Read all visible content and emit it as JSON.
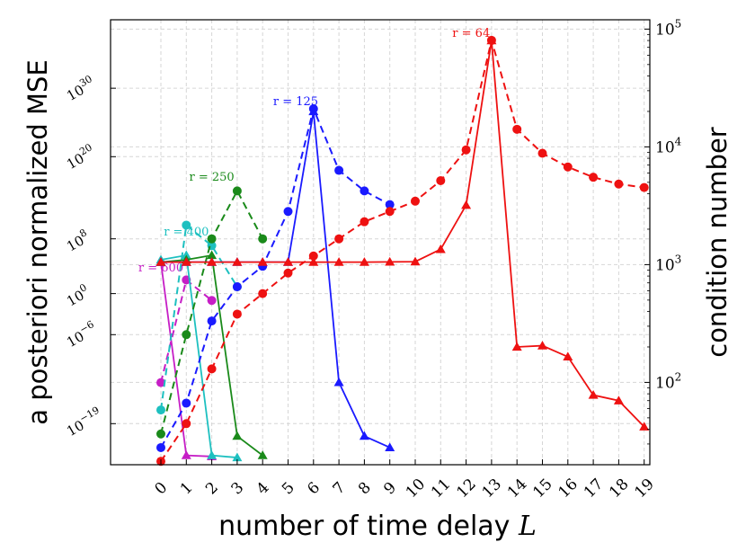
{
  "chart_data": {
    "type": "line",
    "xlabel": "number of time delay",
    "xlabel_var": "L",
    "ylabel_left": "a posteriori normalized MSE",
    "ylabel_right": "condition number",
    "x_ticks": [
      "0",
      "1",
      "2",
      "3",
      "4",
      "5",
      "6",
      "7",
      "8",
      "9",
      "10",
      "11",
      "12",
      "13",
      "14",
      "15",
      "16",
      "17",
      "18",
      "19"
    ],
    "left_axis": {
      "scale": "linear",
      "lim": [
        -25,
        40
      ],
      "ticks": [
        {
          "v": 30,
          "b": "10",
          "e": "30"
        },
        {
          "v": 20,
          "b": "10",
          "e": "20"
        },
        {
          "v": 8,
          "b": "10",
          "e": "8"
        },
        {
          "v": 0,
          "b": "10",
          "e": "0"
        },
        {
          "v": -6,
          "b": "10",
          "e": "−6"
        },
        {
          "v": -19,
          "b": "10",
          "e": "−19"
        }
      ]
    },
    "right_axis": {
      "scale": "log",
      "lim": [
        20,
        120000
      ],
      "ticks": [
        {
          "v": 100,
          "b": "10",
          "e": "2"
        },
        {
          "v": 1000,
          "b": "10",
          "e": "3"
        },
        {
          "v": 10000,
          "b": "10",
          "e": "4"
        },
        {
          "v": 100000,
          "b": "10",
          "e": "5"
        }
      ]
    },
    "grid": true,
    "series": [
      {
        "name": "r = 600",
        "color": "#c61ec6",
        "label_at": [
          0,
          3.2
        ],
        "mse_log10": [
          [
            0,
            -13
          ],
          [
            1,
            2
          ],
          [
            2,
            -1
          ]
        ],
        "cond": [
          [
            0,
            1050
          ],
          [
            1,
            24
          ],
          [
            2,
            23.5
          ]
        ]
      },
      {
        "name": "r = 400",
        "color": "#1ec0c0",
        "label_at": [
          1,
          8.5
        ],
        "mse_log10": [
          [
            0,
            -17
          ],
          [
            1,
            10
          ],
          [
            2,
            7
          ],
          [
            3,
            1
          ]
        ],
        "cond": [
          [
            0,
            1100
          ],
          [
            1,
            1200
          ],
          [
            2,
            24
          ],
          [
            3,
            23
          ]
        ]
      },
      {
        "name": "r = 250",
        "color": "#1a8a1a",
        "label_at": [
          2,
          16.5
        ],
        "mse_log10": [
          [
            0,
            -20.5
          ],
          [
            1,
            -6
          ],
          [
            2,
            8
          ],
          [
            3,
            15
          ],
          [
            4,
            8
          ]
        ],
        "cond": [
          [
            0,
            1050
          ],
          [
            1,
            1100
          ],
          [
            2,
            1200
          ],
          [
            3,
            35
          ],
          [
            4,
            24
          ]
        ]
      },
      {
        "name": "r = 125",
        "color": "#1a1aff",
        "label_at": [
          5.3,
          27.5
        ],
        "mse_log10": [
          [
            0,
            -22.5
          ],
          [
            1,
            -16
          ],
          [
            2,
            -4
          ],
          [
            3,
            1
          ],
          [
            4,
            4
          ],
          [
            5,
            12
          ],
          [
            6,
            27
          ],
          [
            7,
            18
          ],
          [
            8,
            15
          ],
          [
            9,
            13
          ]
        ],
        "cond": [
          [
            0,
            1050
          ],
          [
            1,
            1050
          ],
          [
            2,
            1050
          ],
          [
            3,
            1050
          ],
          [
            4,
            1050
          ],
          [
            5,
            1050
          ],
          [
            6,
            20000
          ],
          [
            7,
            100
          ],
          [
            8,
            35
          ],
          [
            9,
            28
          ]
        ]
      },
      {
        "name": "r = 64",
        "color": "#ee1111",
        "label_at": [
          12.2,
          37.5
        ],
        "mse_log10": [
          [
            0,
            -24.5
          ],
          [
            1,
            -19
          ],
          [
            2,
            -11
          ],
          [
            3,
            -3
          ],
          [
            4,
            0
          ],
          [
            5,
            3
          ],
          [
            6,
            5.5
          ],
          [
            7,
            8
          ],
          [
            8,
            10.5
          ],
          [
            9,
            12
          ],
          [
            10,
            13.5
          ],
          [
            11,
            16.5
          ],
          [
            12,
            21
          ],
          [
            13,
            37
          ],
          [
            14,
            24
          ],
          [
            15,
            20.5
          ],
          [
            16,
            18.5
          ],
          [
            17,
            17
          ],
          [
            18,
            16
          ],
          [
            19,
            15.5
          ]
        ],
        "cond": [
          [
            0,
            1050
          ],
          [
            1,
            1050
          ],
          [
            2,
            1050
          ],
          [
            3,
            1050
          ],
          [
            4,
            1050
          ],
          [
            5,
            1050
          ],
          [
            6,
            1050
          ],
          [
            7,
            1050
          ],
          [
            8,
            1050
          ],
          [
            9,
            1055
          ],
          [
            10,
            1060
          ],
          [
            11,
            1350
          ],
          [
            12,
            3200
          ],
          [
            13,
            80000
          ],
          [
            14,
            200
          ],
          [
            15,
            205
          ],
          [
            16,
            165
          ],
          [
            17,
            78
          ],
          [
            18,
            70
          ],
          [
            19,
            42
          ]
        ]
      }
    ]
  }
}
